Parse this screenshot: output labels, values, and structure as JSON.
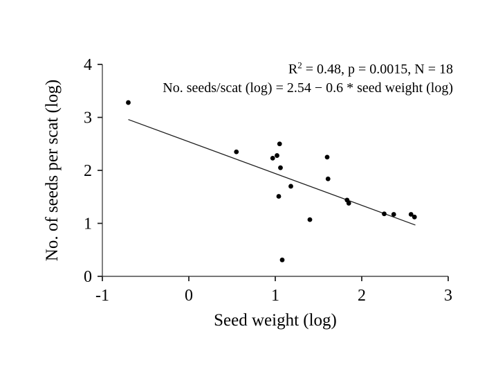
{
  "figure": {
    "annotation": {
      "r2_prefix": "R",
      "r2_superscript": "2",
      "r2_rest": " = 0.48, p = 0.0015, N = 18",
      "equation": "No. seeds/scat (log) = 2.54 − 0.6 * seed weight (log)"
    }
  },
  "chart_data": {
    "type": "scatter",
    "title": "",
    "xlabel": "Seed weight (log)",
    "ylabel": "No. of seeds per scat (log)",
    "xlim": [
      -1,
      3
    ],
    "ylim": [
      0,
      4
    ],
    "xticks": [
      -1,
      0,
      1,
      2,
      3
    ],
    "yticks": [
      0,
      1,
      2,
      3,
      4
    ],
    "grid": false,
    "legend": false,
    "marker_color": "#000000",
    "line_color": "#1c1c1c",
    "points": [
      [
        -0.7,
        3.28
      ],
      [
        0.55,
        2.35
      ],
      [
        0.97,
        2.23
      ],
      [
        1.02,
        2.28
      ],
      [
        1.04,
        1.51
      ],
      [
        1.05,
        2.5
      ],
      [
        1.06,
        2.05
      ],
      [
        1.08,
        0.31
      ],
      [
        1.18,
        1.7
      ],
      [
        1.4,
        1.07
      ],
      [
        1.6,
        2.25
      ],
      [
        1.61,
        1.84
      ],
      [
        1.83,
        1.44
      ],
      [
        1.85,
        1.38
      ],
      [
        2.26,
        1.18
      ],
      [
        2.37,
        1.17
      ],
      [
        2.57,
        1.17
      ],
      [
        2.61,
        1.12
      ]
    ],
    "regression": {
      "intercept": 2.54,
      "slope": -0.6,
      "x_start": -0.7,
      "x_end": 2.62
    },
    "stats": {
      "r_squared": 0.48,
      "p_value": 0.0015,
      "n": 18
    }
  }
}
